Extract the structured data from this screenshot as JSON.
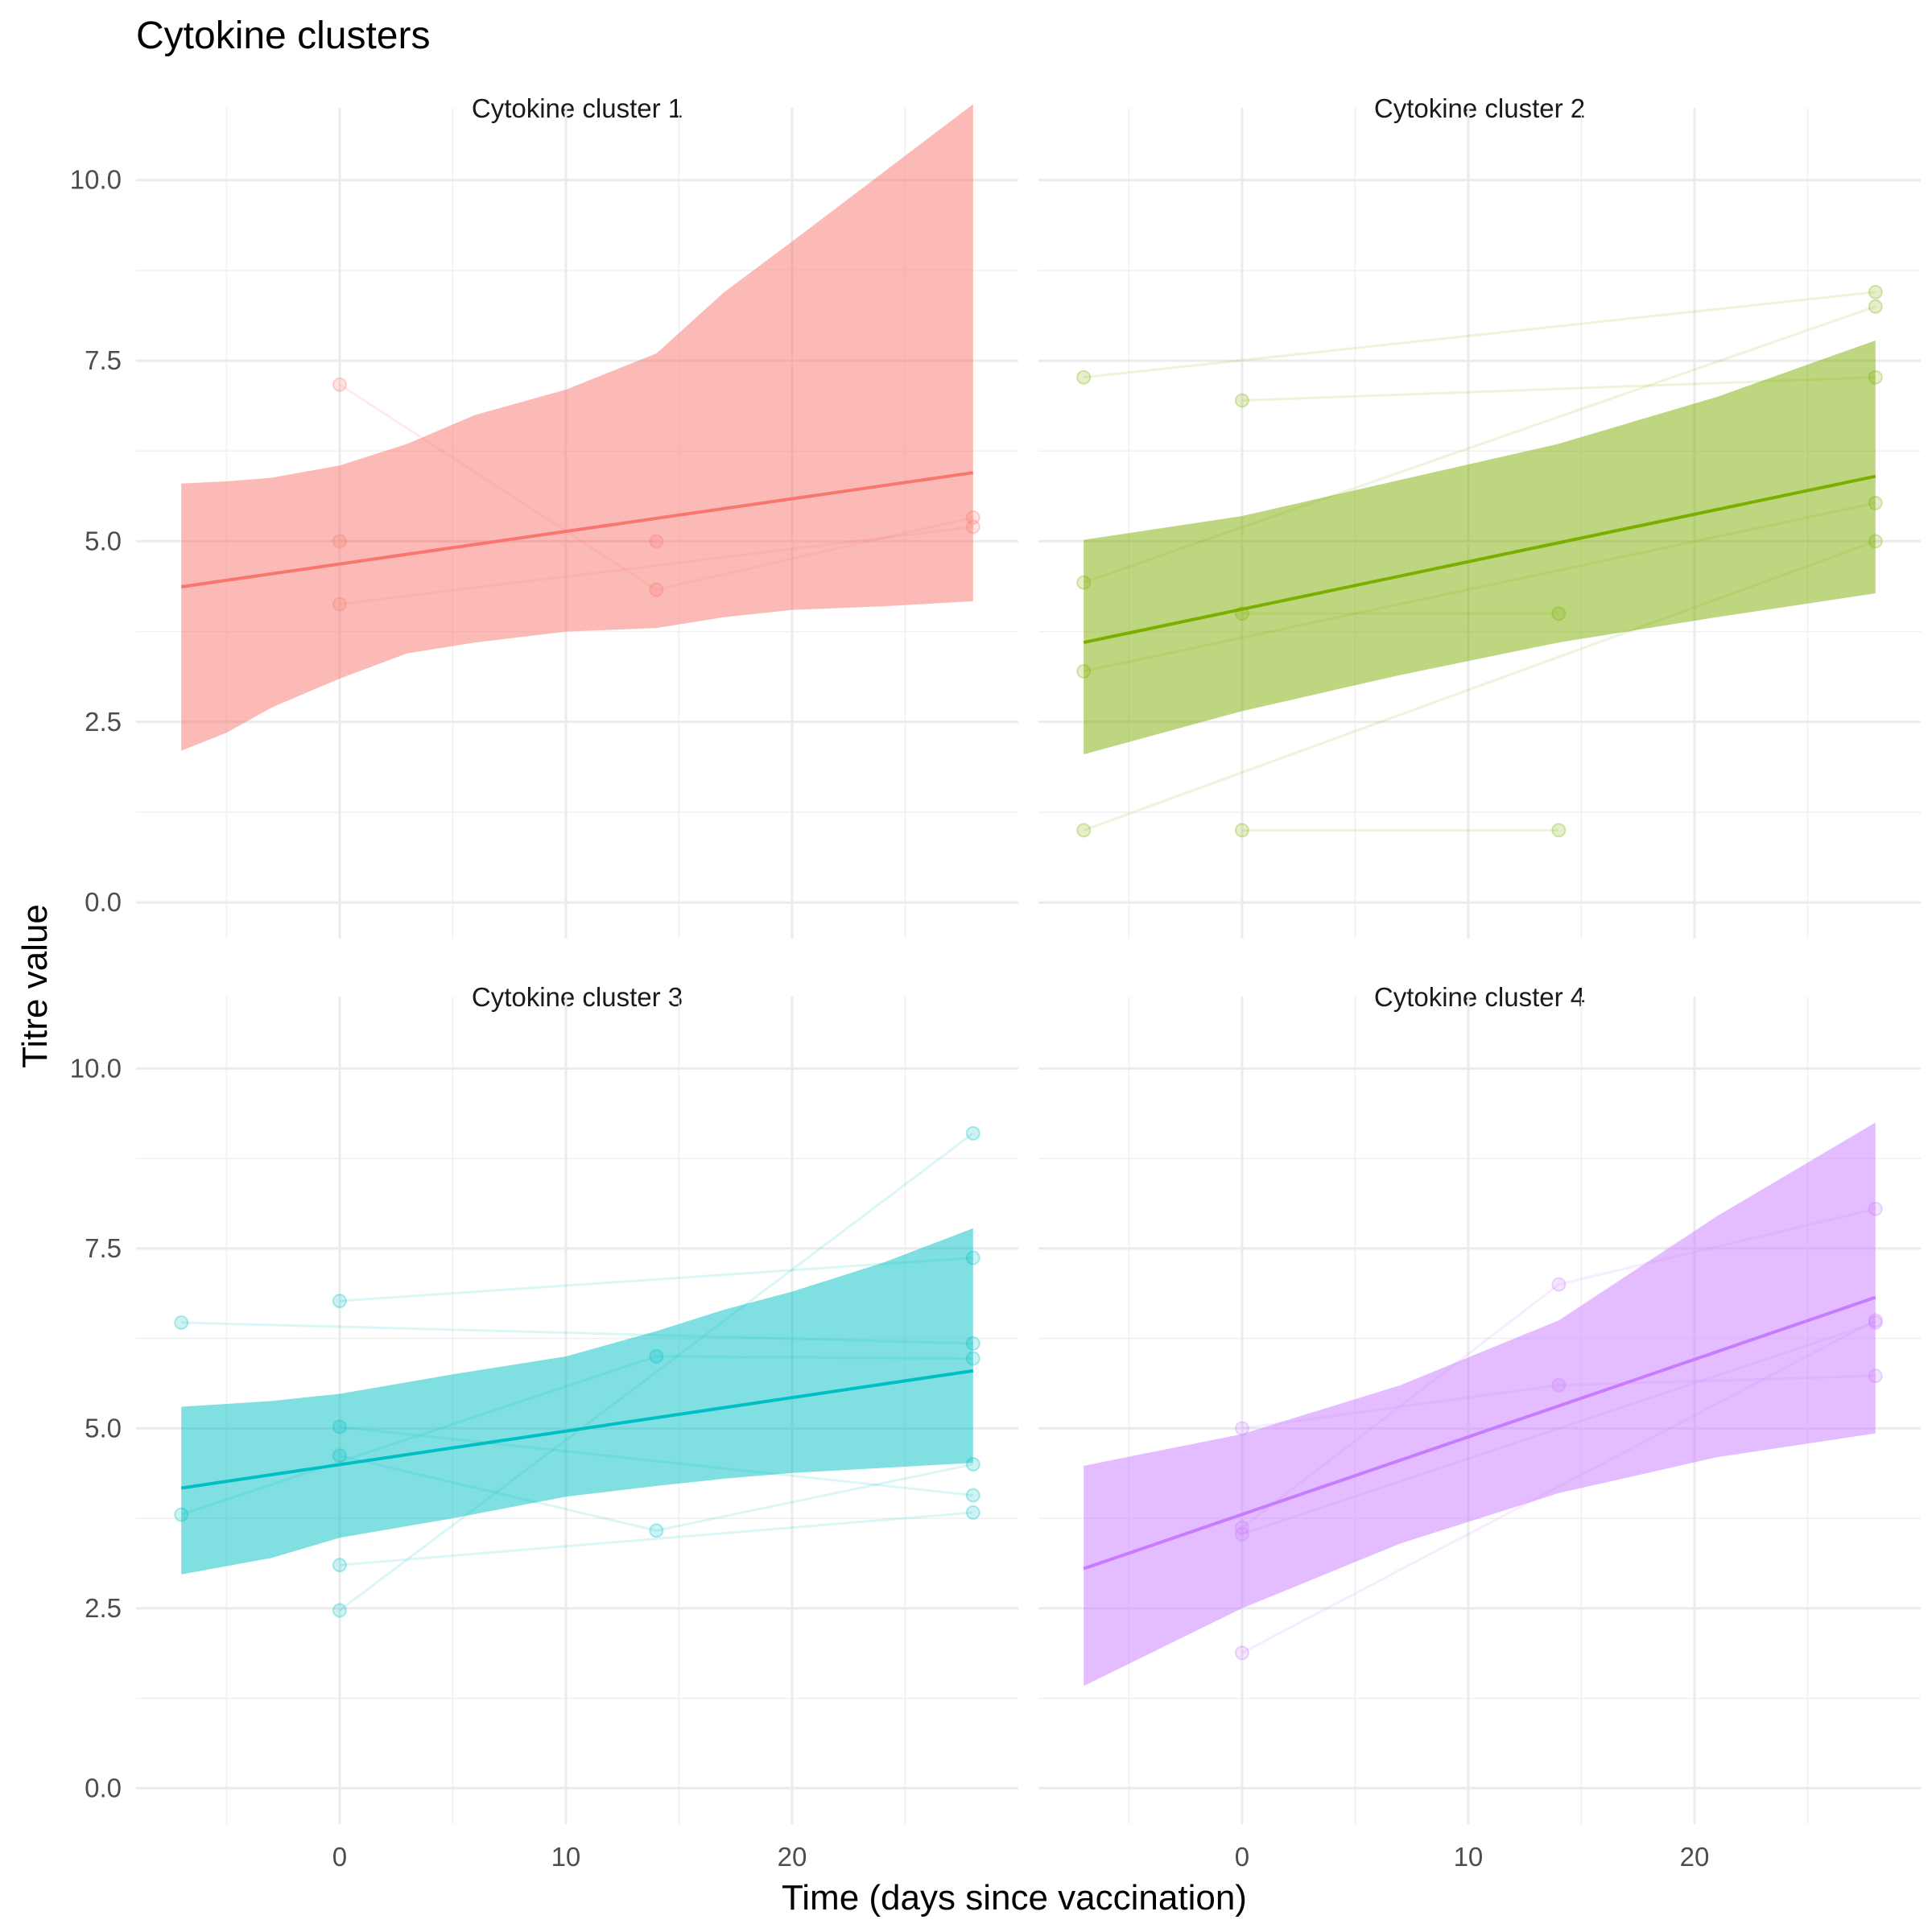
{
  "chart_data": {
    "type": "line",
    "title": "Cytokine clusters",
    "xlabel": "Time (days since vaccination)",
    "ylabel": "Titre value",
    "xlim": [
      -9,
      30
    ],
    "ylim": [
      -0.5,
      11
    ],
    "x_ticks": [
      0,
      10,
      20
    ],
    "x_tick_labels": [
      "0",
      "10",
      "20"
    ],
    "x_minor_ticks": [
      -5,
      5,
      15,
      25
    ],
    "y_ticks": [
      0,
      2.5,
      5,
      7.5,
      10
    ],
    "y_tick_labels": [
      "0.0",
      "2.5",
      "5.0",
      "7.5",
      "10.0"
    ],
    "y_minor_ticks": [
      1.25,
      3.75,
      6.25,
      8.75
    ],
    "grid": true,
    "legend": "none",
    "panels": [
      {
        "name": "Cytokine cluster 1",
        "color": "#F8766D",
        "fit": {
          "x": [
            -7,
            28
          ],
          "y": [
            4.37,
            5.95
          ]
        },
        "ribbon": {
          "x": [
            -7,
            -5,
            -3,
            0,
            3,
            6,
            10,
            14,
            17,
            20,
            24,
            28
          ],
          "lower": [
            2.1,
            2.35,
            2.7,
            3.1,
            3.45,
            3.6,
            3.75,
            3.8,
            3.95,
            4.05,
            4.1,
            4.17
          ],
          "upper": [
            5.8,
            5.83,
            5.88,
            6.05,
            6.35,
            6.75,
            7.1,
            7.6,
            8.45,
            9.15,
            10.1,
            11.05
          ]
        },
        "subjects": [
          [
            [
              0,
              7.17
            ],
            [
              14,
              4.33
            ],
            [
              28,
              5.33
            ]
          ],
          [
            [
              0,
              5.0
            ],
            [
              14,
              5.0
            ]
          ],
          [
            [
              0,
              4.13
            ],
            [
              28,
              5.2
            ]
          ]
        ]
      },
      {
        "name": "Cytokine cluster 2",
        "color": "#7CAE00",
        "fit": {
          "x": [
            -7,
            28
          ],
          "y": [
            3.6,
            5.9
          ]
        },
        "ribbon": {
          "x": [
            -7,
            0,
            7,
            14,
            21,
            28
          ],
          "lower": [
            2.05,
            2.65,
            3.15,
            3.6,
            3.95,
            4.28
          ],
          "upper": [
            5.02,
            5.35,
            5.85,
            6.35,
            7.0,
            7.78
          ]
        },
        "subjects": [
          [
            [
              -7,
              7.27
            ],
            [
              28,
              8.45
            ]
          ],
          [
            [
              0,
              6.95
            ],
            [
              28,
              7.27
            ]
          ],
          [
            [
              -7,
              4.43
            ],
            [
              28,
              8.25
            ]
          ],
          [
            [
              -7,
              3.2
            ],
            [
              28,
              5.53
            ]
          ],
          [
            [
              0,
              4.0
            ],
            [
              14,
              4.0
            ]
          ],
          [
            [
              -7,
              1.0
            ],
            [
              28,
              5.0
            ]
          ],
          [
            [
              0,
              1.0
            ],
            [
              14,
              1.0
            ]
          ]
        ]
      },
      {
        "name": "Cytokine cluster 3",
        "color": "#00BFC4",
        "fit": {
          "x": [
            -7,
            28
          ],
          "y": [
            4.17,
            5.8
          ]
        },
        "ribbon": {
          "x": [
            -7,
            -3,
            0,
            5,
            10,
            14,
            17,
            20,
            24,
            28
          ],
          "lower": [
            2.97,
            3.2,
            3.48,
            3.75,
            4.05,
            4.2,
            4.3,
            4.38,
            4.45,
            4.52
          ],
          "upper": [
            5.3,
            5.38,
            5.48,
            5.75,
            6.0,
            6.35,
            6.65,
            6.9,
            7.3,
            7.78
          ]
        },
        "subjects": [
          [
            [
              -7,
              6.47
            ],
            [
              28,
              6.18
            ]
          ],
          [
            [
              0,
              6.77
            ],
            [
              28,
              7.37
            ]
          ],
          [
            [
              -7,
              3.8
            ],
            [
              14,
              6.0
            ],
            [
              28,
              5.97
            ]
          ],
          [
            [
              0,
              5.02
            ],
            [
              28,
              4.07
            ]
          ],
          [
            [
              0,
              4.62
            ],
            [
              14,
              3.58
            ],
            [
              28,
              4.5
            ]
          ],
          [
            [
              0,
              3.1
            ],
            [
              28,
              3.83
            ]
          ],
          [
            [
              0,
              2.47
            ],
            [
              28,
              9.1
            ]
          ]
        ]
      },
      {
        "name": "Cytokine cluster 4",
        "color": "#C77CFF",
        "fit": {
          "x": [
            -7,
            28
          ],
          "y": [
            3.05,
            6.82
          ]
        },
        "ribbon": {
          "x": [
            -7,
            0,
            7,
            14,
            21,
            28
          ],
          "lower": [
            1.42,
            2.5,
            3.4,
            4.1,
            4.6,
            4.93
          ],
          "upper": [
            4.48,
            4.92,
            5.6,
            6.5,
            7.95,
            9.25
          ]
        },
        "subjects": [
          [
            [
              0,
              5.0
            ],
            [
              14,
              5.6
            ],
            [
              28,
              5.73
            ]
          ],
          [
            [
              0,
              3.62
            ],
            [
              14,
              7.0
            ],
            [
              28,
              8.05
            ]
          ],
          [
            [
              0,
              3.53
            ],
            [
              28,
              6.47
            ]
          ],
          [
            [
              0,
              1.88
            ],
            [
              28,
              6.5
            ]
          ]
        ]
      }
    ]
  }
}
